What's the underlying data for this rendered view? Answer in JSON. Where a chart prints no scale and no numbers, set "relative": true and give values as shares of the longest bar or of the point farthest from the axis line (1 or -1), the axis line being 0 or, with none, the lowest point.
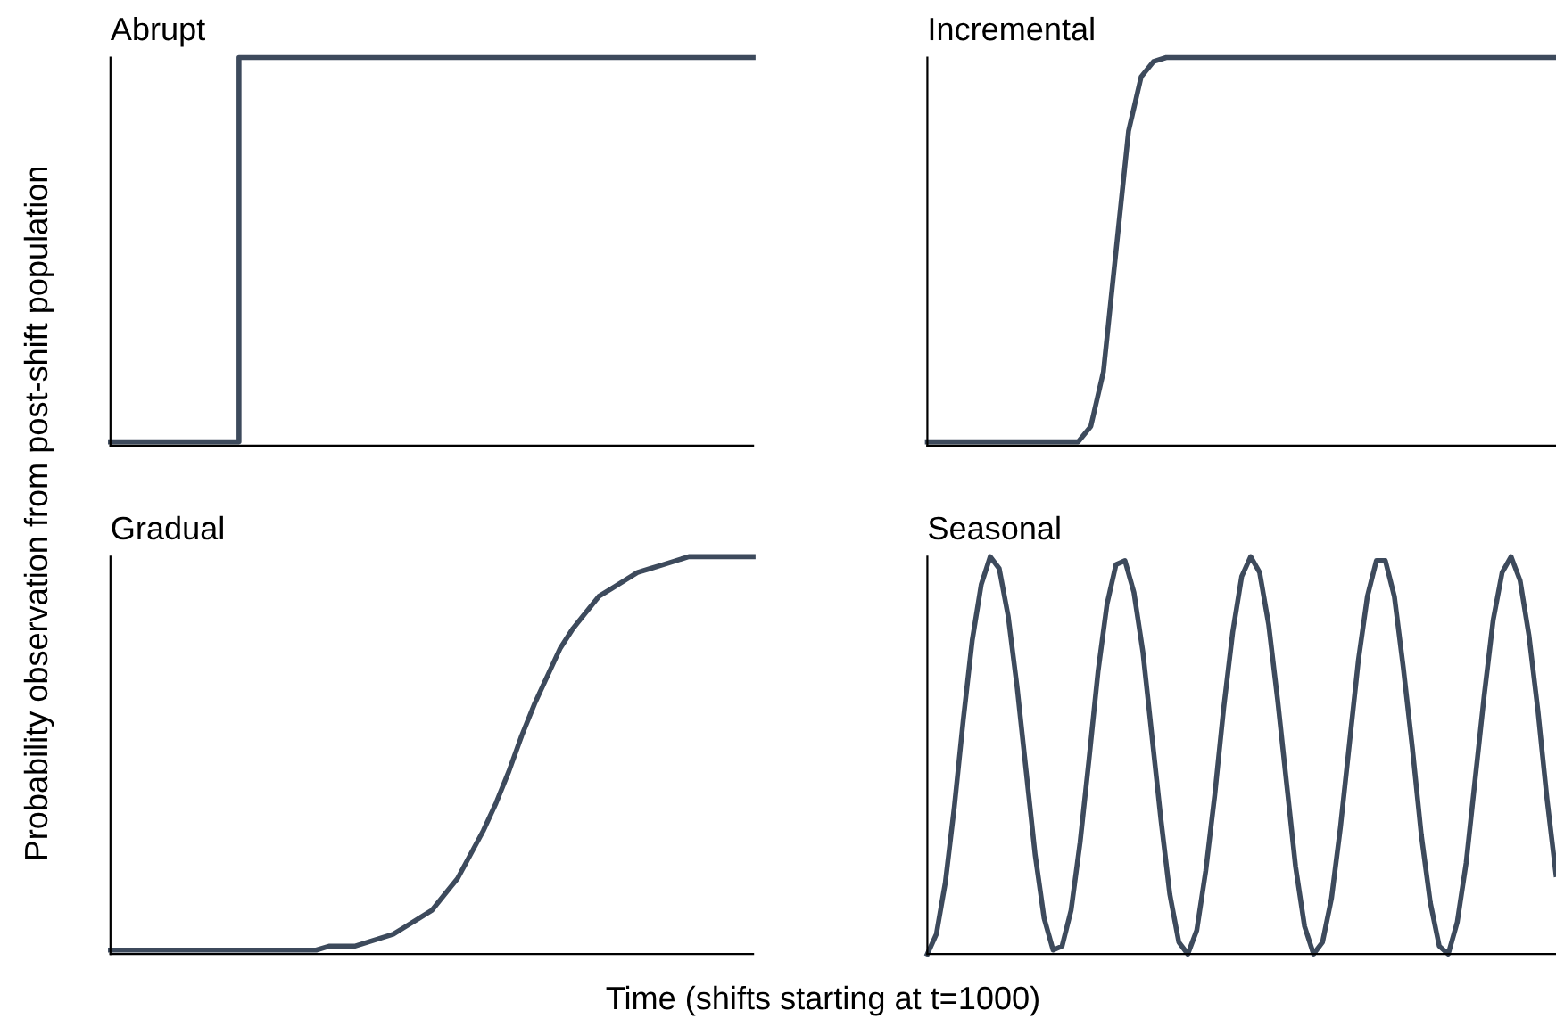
{
  "chart_data": [
    {
      "type": "step",
      "title": "Abrupt",
      "relative": true,
      "tick_labels": false,
      "ylabel": "Probability observation from post-shift population",
      "categories": [
        null,
        null,
        null,
        null,
        null,
        null,
        null,
        null,
        null,
        null,
        null,
        null,
        null,
        null,
        null,
        null,
        null,
        null,
        null,
        null,
        null,
        null,
        null,
        null,
        null,
        null,
        null,
        null,
        null,
        null,
        null,
        null,
        null,
        null,
        null,
        null,
        null,
        null,
        null,
        null,
        null,
        null,
        null,
        null,
        null,
        null,
        null,
        null,
        null,
        null,
        null
      ],
      "series": [
        {
          "color": "#3d4a5c",
          "values": [
            0.01,
            0.01,
            0.01,
            0.01,
            0.01,
            0.01,
            0.01,
            0.01,
            0.01,
            0.01,
            1,
            1,
            1,
            1,
            1,
            1,
            1,
            1,
            1,
            1,
            1,
            1,
            1,
            1,
            1,
            1,
            1,
            1,
            1,
            1,
            1,
            1,
            1,
            1,
            1,
            1,
            1,
            1,
            1,
            1,
            1,
            1,
            1,
            1,
            1,
            1,
            1,
            1,
            1,
            1,
            1
          ]
        }
      ]
    },
    {
      "type": "line",
      "title": "Incremental",
      "relative": true,
      "tick_labels": false,
      "categories": [
        null,
        null,
        null,
        null,
        null,
        null,
        null,
        null,
        null,
        null,
        null,
        null,
        null,
        null,
        null,
        null,
        null,
        null,
        null,
        null,
        null,
        null,
        null,
        null,
        null,
        null,
        null,
        null,
        null,
        null,
        null,
        null,
        null,
        null,
        null,
        null,
        null,
        null,
        null,
        null,
        null,
        null,
        null,
        null,
        null,
        null,
        null,
        null,
        null,
        null,
        null
      ],
      "series": [
        {
          "color": "#3d4a5c",
          "values": [
            0.01,
            0.01,
            0.01,
            0.01,
            0.01,
            0.01,
            0.01,
            0.01,
            0.01,
            0.01,
            0.01,
            0.01,
            0.01,
            0.05,
            0.19,
            0.5,
            0.81,
            0.95,
            0.99,
            1,
            1,
            1,
            1,
            1,
            1,
            1,
            1,
            1,
            1,
            1,
            1,
            1,
            1,
            1,
            1,
            1,
            1,
            1,
            1,
            1,
            1,
            1,
            1,
            1,
            1,
            1,
            1,
            1,
            1,
            1,
            1
          ]
        }
      ]
    },
    {
      "type": "line",
      "title": "Gradual",
      "relative": true,
      "tick_labels": false,
      "categories": [
        null,
        null,
        null,
        null,
        null,
        null,
        null,
        null,
        null,
        null,
        null,
        null,
        null,
        null,
        null,
        null,
        null,
        null,
        null,
        null,
        null,
        null,
        null,
        null,
        null,
        null,
        null,
        null,
        null,
        null,
        null,
        null,
        null,
        null,
        null,
        null,
        null,
        null,
        null,
        null,
        null,
        null,
        null,
        null,
        null,
        null,
        null,
        null,
        null,
        null,
        null
      ],
      "series": [
        {
          "color": "#3d4a5c",
          "values": [
            0.01,
            0.01,
            0.01,
            0.01,
            0.01,
            0.01,
            0.01,
            0.01,
            0.01,
            0.01,
            0.01,
            0.01,
            0.01,
            0.01,
            0.01,
            0.01,
            0.01,
            0.02,
            0.02,
            0.02,
            0.03,
            0.04,
            0.05,
            0.07,
            0.09,
            0.11,
            0.15,
            0.19,
            0.25,
            0.31,
            0.38,
            0.46,
            0.55,
            0.63,
            0.7,
            0.77,
            0.82,
            0.86,
            0.9,
            0.92,
            0.94,
            0.96,
            0.97,
            0.98,
            0.99,
            1,
            1,
            1,
            1,
            1,
            1
          ]
        }
      ]
    },
    {
      "type": "line",
      "title": "Seasonal",
      "relative": true,
      "tick_labels": false,
      "xlabel": "Time (shifts starting at t=1000)",
      "categories": [
        null,
        null,
        null,
        null,
        null,
        null,
        null,
        null,
        null,
        null,
        null,
        null,
        null,
        null,
        null,
        null,
        null,
        null,
        null,
        null,
        null,
        null,
        null,
        null,
        null,
        null,
        null,
        null,
        null,
        null,
        null,
        null,
        null,
        null,
        null,
        null,
        null,
        null,
        null,
        null,
        null,
        null,
        null,
        null,
        null,
        null,
        null,
        null,
        null,
        null,
        null,
        null,
        null,
        null,
        null,
        null,
        null,
        null,
        null,
        null,
        null,
        null,
        null,
        null,
        null,
        null,
        null,
        null,
        null,
        null,
        null
      ],
      "series": [
        {
          "color": "#3d4a5c",
          "values": [
            0,
            0.05,
            0.18,
            0.37,
            0.59,
            0.79,
            0.93,
            1,
            0.97,
            0.85,
            0.67,
            0.46,
            0.25,
            0.09,
            0.01,
            0.02,
            0.11,
            0.28,
            0.49,
            0.71,
            0.88,
            0.98,
            0.99,
            0.91,
            0.76,
            0.55,
            0.34,
            0.15,
            0.03,
            0,
            0.06,
            0.21,
            0.4,
            0.62,
            0.81,
            0.95,
            1,
            0.96,
            0.83,
            0.64,
            0.43,
            0.22,
            0.07,
            0,
            0.03,
            0.14,
            0.32,
            0.53,
            0.74,
            0.9,
            0.99,
            0.99,
            0.9,
            0.72,
            0.52,
            0.3,
            0.13,
            0.02,
            0,
            0.08,
            0.23,
            0.44,
            0.65,
            0.84,
            0.96,
            1,
            0.94,
            0.8,
            0.61,
            0.39,
            0.2
          ]
        }
      ]
    }
  ]
}
